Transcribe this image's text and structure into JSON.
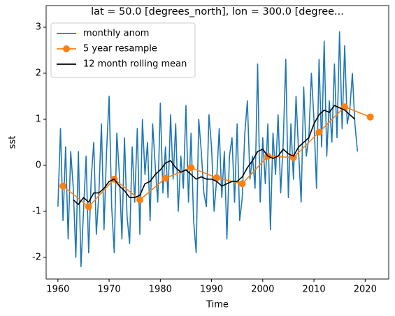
{
  "chart_data": {
    "type": "line",
    "title": "lat = 50.0 [degrees_north], lon = 300.0 [degree...",
    "xlabel": "Time",
    "ylabel": "sst",
    "xlim": [
      1957.7,
      2024.6
    ],
    "ylim": [
      -2.47,
      3.47
    ],
    "xticks": [
      1960,
      1970,
      1980,
      1990,
      2000,
      2010,
      2020
    ],
    "yticks": [
      -2,
      -1,
      0,
      1,
      2,
      3
    ],
    "legend": "upper left",
    "series": [
      {
        "name": "monthly anom",
        "color": "#1f77b4",
        "marker": null,
        "x": [
          1960,
          1960.5,
          1961,
          1961.5,
          1962,
          1962.5,
          1963,
          1963.5,
          1964,
          1964.5,
          1965,
          1965.5,
          1966,
          1966.5,
          1967,
          1967.5,
          1968,
          1968.5,
          1969,
          1969.5,
          1970,
          1970.5,
          1971,
          1971.5,
          1972,
          1972.5,
          1973,
          1973.5,
          1974,
          1974.5,
          1975,
          1975.5,
          1976,
          1976.5,
          1977,
          1977.5,
          1978,
          1978.5,
          1979,
          1979.5,
          1980,
          1980.5,
          1981,
          1981.5,
          1982,
          1982.5,
          1983,
          1983.5,
          1984,
          1984.5,
          1985,
          1985.5,
          1986,
          1986.5,
          1987,
          1987.5,
          1988,
          1988.5,
          1989,
          1989.5,
          1990,
          1990.5,
          1991,
          1991.5,
          1992,
          1992.5,
          1993,
          1993.5,
          1994,
          1994.5,
          1995,
          1995.5,
          1996,
          1996.5,
          1997,
          1997.5,
          1998,
          1998.5,
          1999,
          1999.5,
          2000,
          2000.5,
          2001,
          2001.5,
          2002,
          2002.5,
          2003,
          2003.5,
          2004,
          2004.5,
          2005,
          2005.5,
          2006,
          2006.5,
          2007,
          2007.5,
          2008,
          2008.5,
          2009,
          2009.5,
          2010,
          2010.5,
          2011,
          2011.5,
          2012,
          2012.5,
          2013,
          2013.5,
          2014,
          2014.5,
          2015,
          2015.5,
          2016,
          2016.5,
          2017,
          2017.5,
          2018,
          2018.5
        ],
        "values": [
          -0.9,
          0.8,
          -1.2,
          0.4,
          -1.6,
          0.3,
          -0.5,
          -2.0,
          0.3,
          -2.2,
          -1.0,
          0.2,
          -1.9,
          -0.3,
          0.5,
          -1.5,
          -0.6,
          0.9,
          -1.4,
          0.3,
          1.5,
          -0.9,
          -1.9,
          0.7,
          -0.2,
          -1.6,
          0.6,
          -1.1,
          -1.7,
          0.4,
          -0.8,
          0.8,
          -1.5,
          1.0,
          -0.2,
          0.5,
          -1.2,
          0.9,
          0.0,
          -0.8,
          1.35,
          -0.6,
          0.4,
          -0.7,
          1.1,
          -0.3,
          0.9,
          -1.0,
          0.2,
          -0.5,
          1.3,
          -0.8,
          0.7,
          -1.2,
          -1.9,
          1.0,
          0.3,
          -0.6,
          -0.9,
          1.1,
          0.4,
          -1.0,
          -0.3,
          0.8,
          -0.7,
          0.3,
          -1.6,
          0.2,
          0.6,
          -0.8,
          0.9,
          -1.2,
          -0.7,
          0.7,
          1.4,
          -0.3,
          0.2,
          -0.5,
          2.2,
          -0.8,
          0.6,
          -0.4,
          0.9,
          -1.4,
          0.7,
          -0.2,
          1.1,
          -0.6,
          0.5,
          2.3,
          -0.7,
          0.9,
          -0.3,
          1.5,
          0.3,
          -0.8,
          1.7,
          0.2,
          0.6,
          2.0,
          1.0,
          -0.5,
          2.3,
          0.4,
          2.7,
          0.2,
          1.4,
          0.5,
          2.2,
          0.6,
          2.9,
          0.8,
          2.6,
          0.9,
          1.2,
          2.0,
          0.9,
          0.3
        ]
      },
      {
        "name": "5 year resample",
        "color": "#ff7f0e",
        "marker": "o",
        "x": [
          1961,
          1966,
          1971,
          1976,
          1981,
          1986,
          1991,
          1996,
          2001,
          2006,
          2011,
          2016,
          2021
        ],
        "values": [
          -0.45,
          -0.9,
          -0.3,
          -0.75,
          -0.28,
          -0.05,
          -0.27,
          -0.4,
          0.2,
          0.17,
          0.72,
          1.27,
          1.05
        ]
      },
      {
        "name": "12 month rolling mean",
        "color": "#000000",
        "marker": null,
        "x": [
          1963,
          1964,
          1965,
          1966,
          1967,
          1968,
          1969,
          1970,
          1971,
          1972,
          1973,
          1974,
          1975,
          1976,
          1977,
          1978,
          1979,
          1980,
          1981,
          1982,
          1983,
          1984,
          1985,
          1986,
          1987,
          1988,
          1989,
          1990,
          1991,
          1992,
          1993,
          1994,
          1995,
          1996,
          1997,
          1998,
          1999,
          2000,
          2001,
          2002,
          2003,
          2004,
          2005,
          2006,
          2007,
          2008,
          2009,
          2010,
          2011,
          2012,
          2013,
          2014,
          2015,
          2016,
          2017,
          2018
        ],
        "values": [
          -0.75,
          -0.85,
          -0.7,
          -0.8,
          -0.6,
          -0.6,
          -0.5,
          -0.35,
          -0.3,
          -0.45,
          -0.55,
          -0.7,
          -0.7,
          -0.65,
          -0.4,
          -0.35,
          -0.2,
          -0.1,
          0.05,
          0.1,
          -0.05,
          -0.15,
          -0.1,
          -0.2,
          -0.3,
          -0.25,
          -0.3,
          -0.3,
          -0.35,
          -0.45,
          -0.4,
          -0.35,
          -0.35,
          -0.25,
          -0.05,
          0.1,
          0.3,
          0.35,
          0.2,
          0.15,
          0.2,
          0.35,
          0.25,
          0.2,
          0.4,
          0.5,
          0.6,
          0.9,
          1.1,
          1.2,
          1.15,
          1.3,
          1.25,
          1.2,
          1.1,
          1.0
        ]
      }
    ]
  }
}
